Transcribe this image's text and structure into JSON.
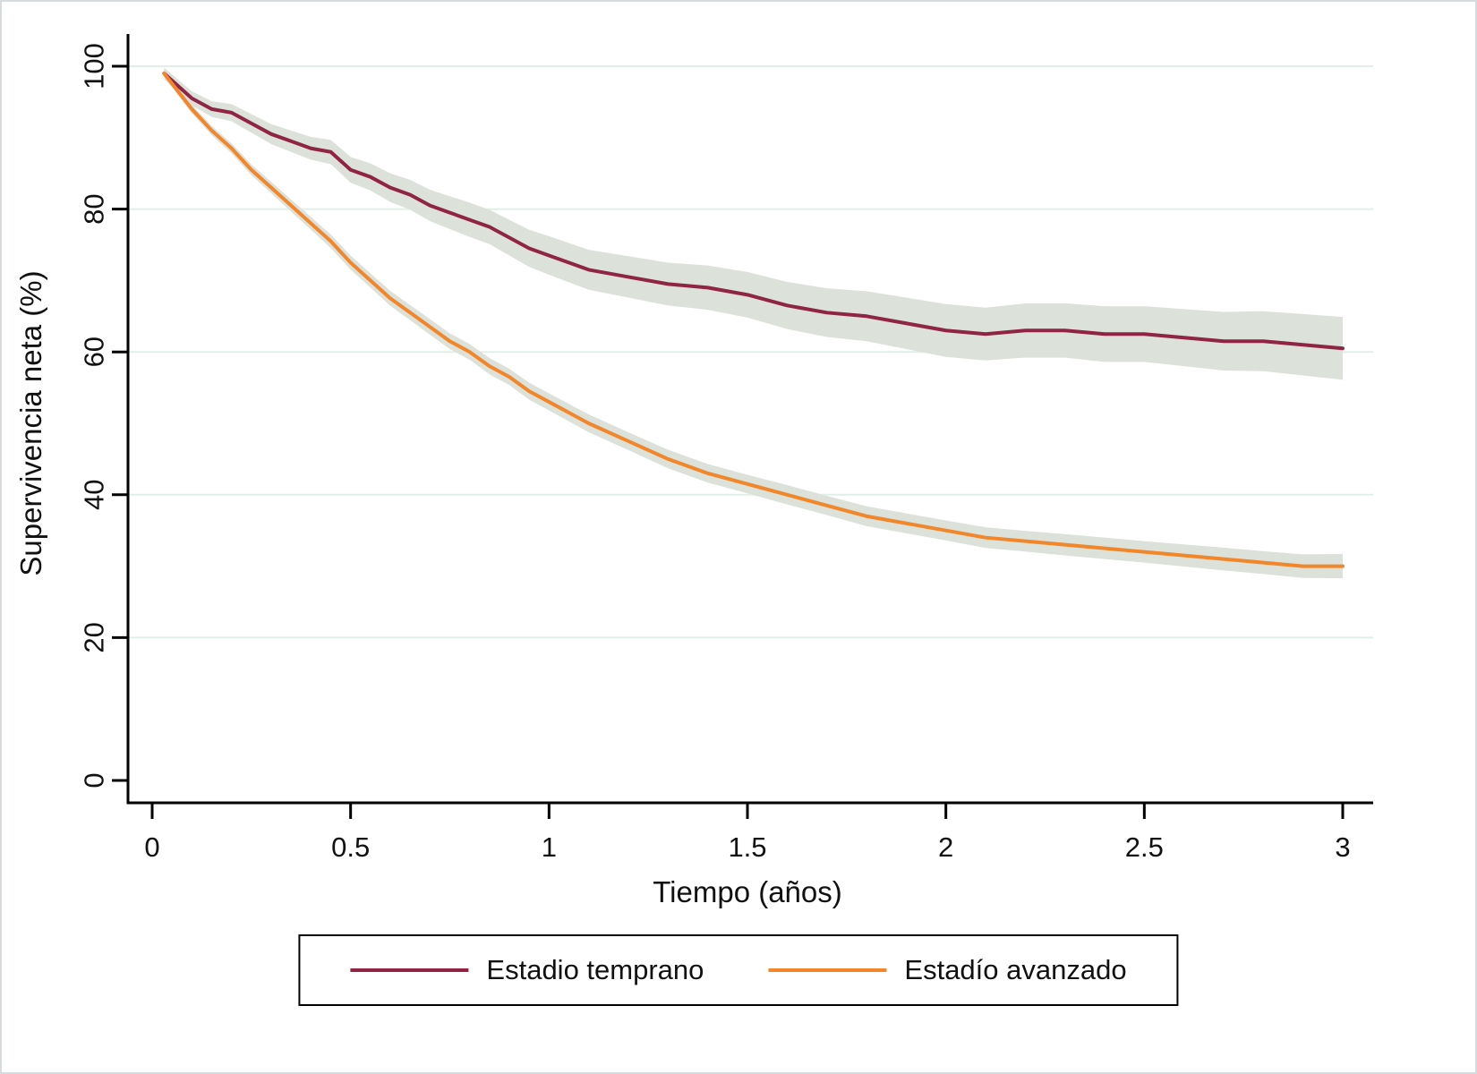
{
  "figure": {
    "background": "#ffffff",
    "border_color": "#d6dbde"
  },
  "chart_data": {
    "type": "line",
    "subtype": "kaplan-meier-net-survival",
    "title": "",
    "xlabel": "Tiempo (años)",
    "ylabel": "Supervivencia neta (%)",
    "xlim": [
      0,
      3
    ],
    "ylim": [
      0,
      100
    ],
    "x_ticks": [
      0,
      0.5,
      1,
      1.5,
      2,
      2.5,
      3
    ],
    "x_tick_labels": [
      "0",
      "0.5",
      "1",
      "1.5",
      "2",
      "2.5",
      "3"
    ],
    "y_ticks": [
      0,
      20,
      40,
      60,
      80,
      100
    ],
    "y_tick_labels": [
      "0",
      "20",
      "40",
      "60",
      "80",
      "100"
    ],
    "grid": "horizontal",
    "grid_color": "#e1f0e7",
    "ci_band_color": "#dce2da",
    "axis_color": "#000000",
    "legend_position": "bottom-center-boxed",
    "series": [
      {
        "name": "Estadio temprano",
        "color": "#8f2444",
        "x": [
          0.03,
          0.1,
          0.15,
          0.2,
          0.25,
          0.3,
          0.35,
          0.4,
          0.45,
          0.5,
          0.55,
          0.6,
          0.65,
          0.7,
          0.75,
          0.8,
          0.85,
          0.9,
          0.95,
          1.0,
          1.1,
          1.2,
          1.3,
          1.4,
          1.5,
          1.6,
          1.7,
          1.8,
          1.9,
          2.0,
          2.1,
          2.2,
          2.3,
          2.4,
          2.5,
          2.6,
          2.7,
          2.8,
          2.9,
          3.0
        ],
        "y": [
          99,
          95.5,
          94,
          93.5,
          92,
          90.5,
          89.5,
          88.5,
          88,
          85.5,
          84.5,
          83,
          82,
          80.5,
          79.5,
          78.5,
          77.5,
          76,
          74.5,
          73.5,
          71.5,
          70.5,
          69.5,
          69,
          68,
          66.5,
          65.5,
          65,
          64,
          63,
          62.5,
          63,
          63,
          62.5,
          62.5,
          62,
          61.5,
          61.5,
          61,
          60.5
        ],
        "ci_halfwidth": [
          0.8,
          1.0,
          1.1,
          1.2,
          1.3,
          1.4,
          1.5,
          1.6,
          1.7,
          1.8,
          1.9,
          2.0,
          2.1,
          2.2,
          2.3,
          2.4,
          2.4,
          2.5,
          2.6,
          2.7,
          2.8,
          2.9,
          3.0,
          3.1,
          3.2,
          3.3,
          3.4,
          3.5,
          3.6,
          3.7,
          3.7,
          3.8,
          3.8,
          3.9,
          3.9,
          4.0,
          4.1,
          4.2,
          4.3,
          4.4
        ]
      },
      {
        "name": "Estadío avanzado",
        "color": "#f1862b",
        "x": [
          0.03,
          0.1,
          0.15,
          0.2,
          0.25,
          0.3,
          0.35,
          0.4,
          0.45,
          0.5,
          0.55,
          0.6,
          0.65,
          0.7,
          0.75,
          0.8,
          0.85,
          0.9,
          0.95,
          1.0,
          1.1,
          1.2,
          1.3,
          1.4,
          1.5,
          1.6,
          1.7,
          1.8,
          1.9,
          2.0,
          2.1,
          2.2,
          2.3,
          2.4,
          2.5,
          2.6,
          2.7,
          2.8,
          2.9,
          3.0
        ],
        "y": [
          99,
          94,
          91,
          88.5,
          85.5,
          83,
          80.5,
          78,
          75.5,
          72.5,
          70,
          67.5,
          65.5,
          63.5,
          61.5,
          60,
          58,
          56.5,
          54.5,
          53,
          50,
          47.5,
          45,
          43,
          41.5,
          40,
          38.5,
          37,
          36,
          35,
          34,
          33.5,
          33,
          32.5,
          32,
          31.5,
          31,
          30.5,
          30,
          30
        ],
        "ci_halfwidth": [
          0.5,
          0.6,
          0.65,
          0.7,
          0.75,
          0.8,
          0.85,
          0.9,
          0.95,
          1.0,
          1.0,
          1.05,
          1.05,
          1.1,
          1.1,
          1.1,
          1.15,
          1.15,
          1.2,
          1.2,
          1.25,
          1.25,
          1.3,
          1.3,
          1.3,
          1.35,
          1.35,
          1.4,
          1.4,
          1.4,
          1.45,
          1.45,
          1.5,
          1.5,
          1.5,
          1.55,
          1.6,
          1.6,
          1.65,
          1.7
        ]
      }
    ]
  }
}
